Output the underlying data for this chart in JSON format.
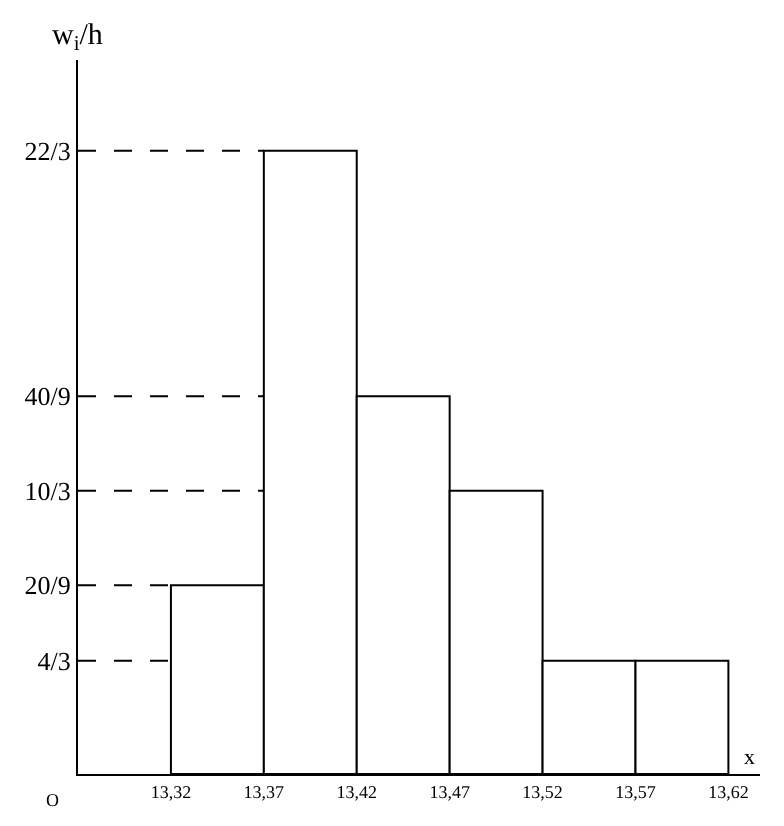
{
  "chart_data": {
    "type": "histogram",
    "bins": [
      13.32,
      13.37,
      13.42,
      13.47,
      13.52,
      13.57,
      13.62
    ],
    "values": [
      2.222,
      7.333,
      4.444,
      3.333,
      1.333,
      1.333
    ],
    "color": "#ffffff",
    "xlim": [
      13.27,
      13.637
    ],
    "ylim": [
      0,
      8.4
    ],
    "xticks": [
      {
        "value": 13.32,
        "label": "13,32"
      },
      {
        "value": 13.37,
        "label": "13,37"
      },
      {
        "value": 13.42,
        "label": "13,42"
      },
      {
        "value": 13.47,
        "label": "13,47"
      },
      {
        "value": 13.52,
        "label": "13,52"
      },
      {
        "value": 13.57,
        "label": "13,57"
      },
      {
        "value": 13.62,
        "label": "13,62"
      }
    ],
    "yticks": [
      {
        "value": 1.333,
        "label": "4/3"
      },
      {
        "value": 2.222,
        "label": "20/9"
      },
      {
        "value": 3.333,
        "label": "10/3"
      },
      {
        "value": 4.444,
        "label": "40/9"
      },
      {
        "value": 7.333,
        "label": "22/3"
      }
    ],
    "ref_lines": [
      {
        "axis": "y",
        "value": 1.333,
        "line_style": "dashed"
      },
      {
        "axis": "y",
        "value": 2.222,
        "line_style": "dashed"
      },
      {
        "axis": "y",
        "value": 3.333,
        "line_style": "dashed"
      },
      {
        "axis": "y",
        "value": 4.444,
        "line_style": "dashed"
      },
      {
        "axis": "y",
        "value": 7.333,
        "line_style": "dashed"
      }
    ],
    "xlabel": "x",
    "ylabel": "w$_{i}$/h",
    "annotations": [
      "O"
    ],
    "grid": false,
    "legend": false
  }
}
